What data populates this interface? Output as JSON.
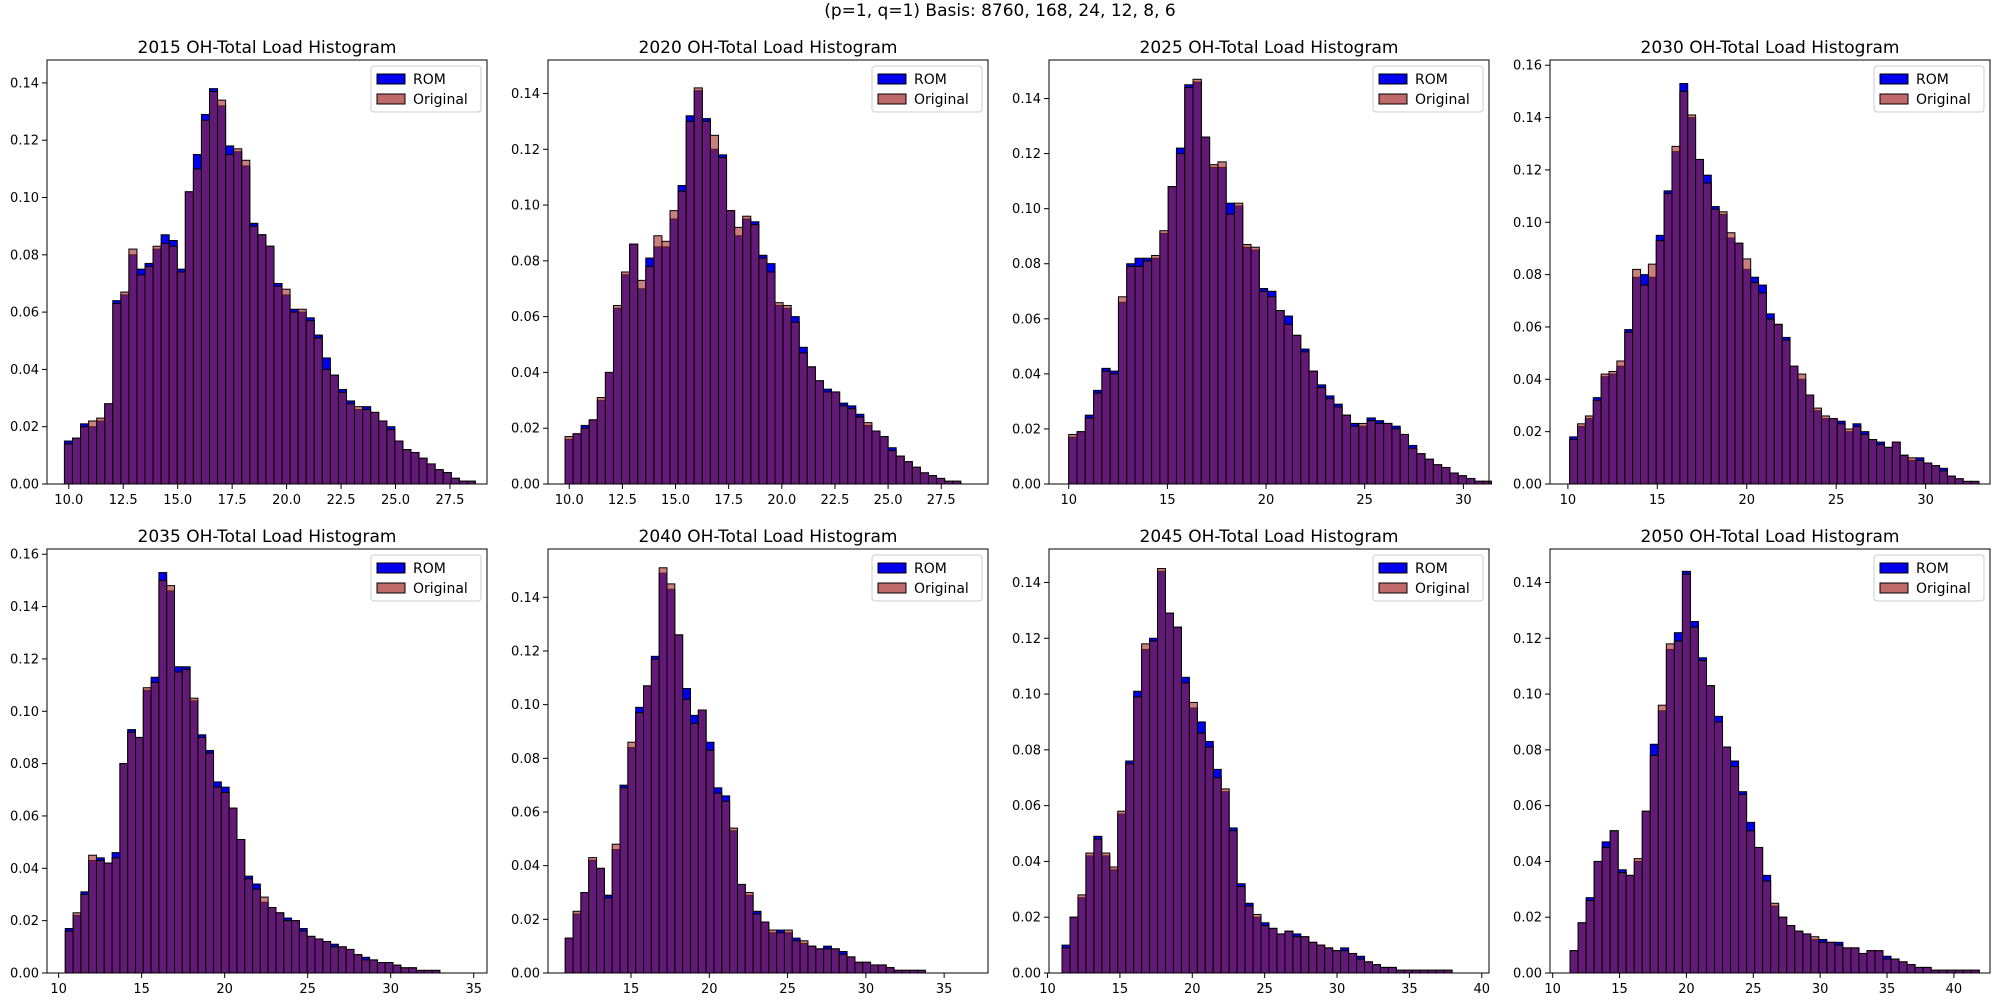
{
  "figure": {
    "suptitle": "(p=1, q=1) Basis: 8760, 168, 24, 12, 8, 6"
  },
  "colors": {
    "rom": "#0000ee",
    "original": "#a52a2a",
    "overlap": "#6b003f",
    "edge": "#000000"
  },
  "chart_data": [
    {
      "type": "bar",
      "title": "2015 OH-Total Load Histogram",
      "xlim": [
        9.0,
        29.2
      ],
      "ylim": [
        0,
        0.148
      ],
      "xticks": [
        10.0,
        12.5,
        15.0,
        17.5,
        20.0,
        22.5,
        25.0,
        27.5
      ],
      "xtick_labels": [
        "10.0",
        "12.5",
        "15.0",
        "17.5",
        "20.0",
        "22.5",
        "25.0",
        "27.5"
      ],
      "yticks": [
        0,
        0.02,
        0.04,
        0.06,
        0.08,
        0.1,
        0.12,
        0.14
      ],
      "ytick_labels": [
        "0.00",
        "0.02",
        "0.04",
        "0.06",
        "0.08",
        "0.10",
        "0.12",
        "0.14"
      ],
      "legend": [
        "ROM",
        "Original"
      ],
      "legend_position": "top-right",
      "bin_start": 9.8,
      "bin_width": 0.37,
      "rom": [
        0.015,
        0.016,
        0.021,
        0.02,
        0.022,
        0.028,
        0.064,
        0.066,
        0.08,
        0.075,
        0.077,
        0.082,
        0.087,
        0.085,
        0.075,
        0.102,
        0.115,
        0.129,
        0.138,
        0.132,
        0.118,
        0.116,
        0.111,
        0.091,
        0.087,
        0.083,
        0.07,
        0.066,
        0.061,
        0.06,
        0.058,
        0.052,
        0.044,
        0.038,
        0.033,
        0.029,
        0.026,
        0.027,
        0.025,
        0.022,
        0.02,
        0.015,
        0.012,
        0.011,
        0.009,
        0.007,
        0.005,
        0.004,
        0.002,
        0.001,
        0.001
      ],
      "original": [
        0.014,
        0.016,
        0.02,
        0.022,
        0.023,
        0.028,
        0.063,
        0.067,
        0.082,
        0.073,
        0.076,
        0.083,
        0.084,
        0.083,
        0.074,
        0.102,
        0.11,
        0.127,
        0.137,
        0.134,
        0.115,
        0.117,
        0.113,
        0.09,
        0.087,
        0.083,
        0.069,
        0.068,
        0.06,
        0.061,
        0.057,
        0.051,
        0.04,
        0.038,
        0.032,
        0.028,
        0.027,
        0.026,
        0.025,
        0.022,
        0.019,
        0.015,
        0.012,
        0.011,
        0.009,
        0.007,
        0.005,
        0.004,
        0.002,
        0.001,
        0.001
      ]
    },
    {
      "type": "bar",
      "title": "2020 OH-Total Load Histogram",
      "xlim": [
        9.0,
        29.7
      ],
      "ylim": [
        0,
        0.152
      ],
      "xticks": [
        10.0,
        12.5,
        15.0,
        17.5,
        20.0,
        22.5,
        25.0,
        27.5
      ],
      "xtick_labels": [
        "10.0",
        "12.5",
        "15.0",
        "17.5",
        "20.0",
        "22.5",
        "25.0",
        "27.5"
      ],
      "yticks": [
        0,
        0.02,
        0.04,
        0.06,
        0.08,
        0.1,
        0.12,
        0.14
      ],
      "ytick_labels": [
        "0.00",
        "0.02",
        "0.04",
        "0.06",
        "0.08",
        "0.10",
        "0.12",
        "0.14"
      ],
      "legend": [
        "ROM",
        "Original"
      ],
      "legend_position": "top-right",
      "bin_start": 9.8,
      "bin_width": 0.38,
      "rom": [
        0.016,
        0.018,
        0.021,
        0.023,
        0.03,
        0.04,
        0.063,
        0.075,
        0.086,
        0.07,
        0.081,
        0.085,
        0.085,
        0.095,
        0.107,
        0.132,
        0.141,
        0.131,
        0.12,
        0.118,
        0.098,
        0.089,
        0.095,
        0.094,
        0.082,
        0.079,
        0.064,
        0.063,
        0.06,
        0.049,
        0.042,
        0.037,
        0.034,
        0.033,
        0.029,
        0.028,
        0.025,
        0.021,
        0.019,
        0.017,
        0.013,
        0.01,
        0.008,
        0.006,
        0.004,
        0.003,
        0.002,
        0.001,
        0.001
      ],
      "original": [
        0.017,
        0.018,
        0.02,
        0.023,
        0.031,
        0.04,
        0.064,
        0.076,
        0.086,
        0.073,
        0.078,
        0.089,
        0.087,
        0.098,
        0.105,
        0.13,
        0.142,
        0.13,
        0.125,
        0.117,
        0.098,
        0.092,
        0.096,
        0.093,
        0.081,
        0.076,
        0.065,
        0.064,
        0.058,
        0.047,
        0.042,
        0.037,
        0.033,
        0.033,
        0.028,
        0.027,
        0.024,
        0.022,
        0.019,
        0.017,
        0.012,
        0.01,
        0.008,
        0.006,
        0.004,
        0.003,
        0.002,
        0.001,
        0.001
      ]
    },
    {
      "type": "bar",
      "title": "2025 OH-Total Load Histogram",
      "xlim": [
        9.0,
        31.3
      ],
      "ylim": [
        0,
        0.154
      ],
      "xticks": [
        10,
        15,
        20,
        25,
        30
      ],
      "xtick_labels": [
        "10",
        "15",
        "20",
        "25",
        "30"
      ],
      "yticks": [
        0,
        0.02,
        0.04,
        0.06,
        0.08,
        0.1,
        0.12,
        0.14
      ],
      "ytick_labels": [
        "0.00",
        "0.02",
        "0.04",
        "0.06",
        "0.08",
        "0.10",
        "0.12",
        "0.14"
      ],
      "legend": [
        "ROM",
        "Original"
      ],
      "legend_position": "top-right",
      "bin_start": 10.0,
      "bin_width": 0.42,
      "rom": [
        0.017,
        0.019,
        0.025,
        0.034,
        0.042,
        0.041,
        0.066,
        0.08,
        0.082,
        0.082,
        0.082,
        0.091,
        0.108,
        0.122,
        0.145,
        0.146,
        0.126,
        0.115,
        0.115,
        0.102,
        0.101,
        0.086,
        0.085,
        0.071,
        0.07,
        0.063,
        0.061,
        0.054,
        0.049,
        0.041,
        0.036,
        0.032,
        0.029,
        0.025,
        0.022,
        0.021,
        0.024,
        0.023,
        0.022,
        0.021,
        0.018,
        0.014,
        0.011,
        0.009,
        0.007,
        0.006,
        0.004,
        0.003,
        0.002,
        0.001,
        0.001
      ],
      "original": [
        0.018,
        0.019,
        0.024,
        0.033,
        0.041,
        0.04,
        0.068,
        0.079,
        0.079,
        0.081,
        0.083,
        0.092,
        0.108,
        0.12,
        0.144,
        0.147,
        0.126,
        0.116,
        0.117,
        0.098,
        0.102,
        0.087,
        0.086,
        0.07,
        0.068,
        0.063,
        0.058,
        0.054,
        0.048,
        0.041,
        0.035,
        0.031,
        0.028,
        0.025,
        0.021,
        0.022,
        0.023,
        0.022,
        0.022,
        0.02,
        0.018,
        0.013,
        0.011,
        0.009,
        0.007,
        0.006,
        0.004,
        0.003,
        0.002,
        0.001,
        0.001
      ]
    },
    {
      "type": "bar",
      "title": "2030 OH-Total Load Histogram",
      "xlim": [
        9.0,
        33.6
      ],
      "ylim": [
        0,
        0.162
      ],
      "xticks": [
        10,
        15,
        20,
        25,
        30
      ],
      "xtick_labels": [
        "10",
        "15",
        "20",
        "25",
        "30"
      ],
      "yticks": [
        0,
        0.02,
        0.04,
        0.06,
        0.08,
        0.1,
        0.12,
        0.14,
        0.16
      ],
      "ytick_labels": [
        "0.00",
        "0.02",
        "0.04",
        "0.06",
        "0.08",
        "0.10",
        "0.12",
        "0.14",
        "0.16"
      ],
      "legend": [
        "ROM",
        "Original"
      ],
      "legend_position": "top-right",
      "bin_start": 10.1,
      "bin_width": 0.44,
      "rom": [
        0.018,
        0.022,
        0.025,
        0.033,
        0.041,
        0.042,
        0.045,
        0.059,
        0.079,
        0.08,
        0.079,
        0.095,
        0.112,
        0.127,
        0.153,
        0.14,
        0.124,
        0.118,
        0.106,
        0.103,
        0.094,
        0.092,
        0.082,
        0.079,
        0.076,
        0.065,
        0.061,
        0.056,
        0.045,
        0.04,
        0.034,
        0.028,
        0.025,
        0.025,
        0.024,
        0.02,
        0.023,
        0.02,
        0.017,
        0.016,
        0.014,
        0.016,
        0.011,
        0.009,
        0.01,
        0.008,
        0.007,
        0.006,
        0.003,
        0.002,
        0.001,
        0.001
      ],
      "original": [
        0.017,
        0.023,
        0.026,
        0.032,
        0.042,
        0.043,
        0.047,
        0.058,
        0.082,
        0.076,
        0.084,
        0.093,
        0.111,
        0.129,
        0.15,
        0.141,
        0.124,
        0.115,
        0.105,
        0.104,
        0.096,
        0.092,
        0.086,
        0.077,
        0.073,
        0.063,
        0.061,
        0.055,
        0.045,
        0.042,
        0.034,
        0.029,
        0.026,
        0.025,
        0.023,
        0.021,
        0.022,
        0.019,
        0.017,
        0.015,
        0.014,
        0.016,
        0.011,
        0.01,
        0.009,
        0.008,
        0.007,
        0.005,
        0.003,
        0.002,
        0.001,
        0.001
      ]
    },
    {
      "type": "bar",
      "title": "2035 OH-Total Load Histogram",
      "xlim": [
        9.3,
        35.8
      ],
      "ylim": [
        0,
        0.162
      ],
      "xticks": [
        10,
        15,
        20,
        25,
        30,
        35
      ],
      "xtick_labels": [
        "10",
        "15",
        "20",
        "25",
        "30",
        "35"
      ],
      "yticks": [
        0,
        0.02,
        0.04,
        0.06,
        0.08,
        0.1,
        0.12,
        0.14,
        0.16
      ],
      "ytick_labels": [
        "0.00",
        "0.02",
        "0.04",
        "0.06",
        "0.08",
        "0.10",
        "0.12",
        "0.14",
        "0.16"
      ],
      "legend": [
        "ROM",
        "Original"
      ],
      "legend_position": "top-right",
      "bin_start": 10.4,
      "bin_width": 0.47,
      "rom": [
        0.017,
        0.022,
        0.031,
        0.043,
        0.044,
        0.042,
        0.046,
        0.08,
        0.093,
        0.09,
        0.108,
        0.113,
        0.153,
        0.146,
        0.117,
        0.117,
        0.104,
        0.091,
        0.085,
        0.073,
        0.071,
        0.063,
        0.051,
        0.037,
        0.034,
        0.027,
        0.025,
        0.023,
        0.021,
        0.02,
        0.017,
        0.014,
        0.013,
        0.012,
        0.011,
        0.01,
        0.009,
        0.007,
        0.006,
        0.005,
        0.004,
        0.004,
        0.003,
        0.002,
        0.002,
        0.001,
        0.001,
        0.001
      ],
      "original": [
        0.016,
        0.023,
        0.03,
        0.045,
        0.043,
        0.042,
        0.044,
        0.08,
        0.092,
        0.09,
        0.109,
        0.111,
        0.15,
        0.148,
        0.115,
        0.116,
        0.105,
        0.09,
        0.084,
        0.071,
        0.069,
        0.063,
        0.051,
        0.036,
        0.032,
        0.029,
        0.025,
        0.023,
        0.02,
        0.02,
        0.016,
        0.014,
        0.013,
        0.012,
        0.01,
        0.01,
        0.009,
        0.007,
        0.005,
        0.005,
        0.004,
        0.004,
        0.003,
        0.002,
        0.002,
        0.001,
        0.001,
        0.001
      ]
    },
    {
      "type": "bar",
      "title": "2040 OH-Total Load Histogram",
      "xlim": [
        9.7,
        37.8
      ],
      "ylim": [
        0,
        0.158
      ],
      "xticks": [
        15,
        20,
        25,
        30,
        35
      ],
      "xtick_labels": [
        "15",
        "20",
        "25",
        "30",
        "35"
      ],
      "yticks": [
        0,
        0.02,
        0.04,
        0.06,
        0.08,
        0.1,
        0.12,
        0.14
      ],
      "ytick_labels": [
        "0.00",
        "0.02",
        "0.04",
        "0.06",
        "0.08",
        "0.10",
        "0.12",
        "0.14"
      ],
      "legend": [
        "ROM",
        "Original"
      ],
      "legend_position": "top-right",
      "bin_start": 10.8,
      "bin_width": 0.5,
      "rom": [
        0.013,
        0.022,
        0.03,
        0.042,
        0.039,
        0.029,
        0.046,
        0.07,
        0.084,
        0.099,
        0.107,
        0.118,
        0.149,
        0.143,
        0.126,
        0.106,
        0.096,
        0.098,
        0.086,
        0.069,
        0.066,
        0.053,
        0.033,
        0.029,
        0.023,
        0.019,
        0.015,
        0.016,
        0.015,
        0.013,
        0.011,
        0.01,
        0.009,
        0.01,
        0.009,
        0.008,
        0.006,
        0.004,
        0.004,
        0.003,
        0.003,
        0.002,
        0.001,
        0.001,
        0.001,
        0.001
      ],
      "original": [
        0.013,
        0.023,
        0.03,
        0.043,
        0.039,
        0.028,
        0.048,
        0.069,
        0.086,
        0.097,
        0.107,
        0.117,
        0.151,
        0.145,
        0.126,
        0.102,
        0.093,
        0.098,
        0.083,
        0.067,
        0.064,
        0.054,
        0.033,
        0.03,
        0.022,
        0.019,
        0.016,
        0.015,
        0.016,
        0.012,
        0.012,
        0.01,
        0.009,
        0.009,
        0.009,
        0.007,
        0.006,
        0.004,
        0.004,
        0.003,
        0.003,
        0.002,
        0.001,
        0.001,
        0.001,
        0.001
      ]
    },
    {
      "type": "bar",
      "title": "2045 OH-Total Load Histogram",
      "xlim": [
        10.1,
        40.5
      ],
      "ylim": [
        0,
        0.152
      ],
      "xticks": [
        10,
        15,
        20,
        25,
        30,
        35,
        40
      ],
      "xtick_labels": [
        "10",
        "15",
        "20",
        "25",
        "30",
        "35",
        "40"
      ],
      "yticks": [
        0,
        0.02,
        0.04,
        0.06,
        0.08,
        0.1,
        0.12,
        0.14
      ],
      "ytick_labels": [
        "0.00",
        "0.02",
        "0.04",
        "0.06",
        "0.08",
        "0.10",
        "0.12",
        "0.14"
      ],
      "legend": [
        "ROM",
        "Original"
      ],
      "legend_position": "top-right",
      "bin_start": 11.0,
      "bin_width": 0.55,
      "rom": [
        0.01,
        0.02,
        0.027,
        0.042,
        0.049,
        0.042,
        0.037,
        0.057,
        0.076,
        0.101,
        0.116,
        0.12,
        0.144,
        0.129,
        0.124,
        0.106,
        0.095,
        0.09,
        0.083,
        0.073,
        0.065,
        0.052,
        0.032,
        0.025,
        0.02,
        0.018,
        0.016,
        0.014,
        0.015,
        0.014,
        0.013,
        0.011,
        0.01,
        0.009,
        0.008,
        0.009,
        0.007,
        0.006,
        0.004,
        0.003,
        0.002,
        0.002,
        0.001,
        0.001,
        0.001,
        0.001,
        0.001,
        0.001,
        0.001
      ],
      "original": [
        0.009,
        0.02,
        0.028,
        0.043,
        0.048,
        0.043,
        0.038,
        0.058,
        0.075,
        0.099,
        0.118,
        0.119,
        0.145,
        0.129,
        0.124,
        0.104,
        0.097,
        0.086,
        0.081,
        0.07,
        0.066,
        0.051,
        0.031,
        0.024,
        0.021,
        0.017,
        0.016,
        0.014,
        0.015,
        0.013,
        0.013,
        0.011,
        0.01,
        0.009,
        0.008,
        0.008,
        0.007,
        0.005,
        0.004,
        0.003,
        0.002,
        0.002,
        0.001,
        0.001,
        0.001,
        0.001,
        0.001,
        0.001,
        0.001
      ]
    },
    {
      "type": "bar",
      "title": "2050 OH-Total Load Histogram",
      "xlim": [
        9.8,
        42.7
      ],
      "ylim": [
        0,
        0.152
      ],
      "xticks": [
        10,
        15,
        20,
        25,
        30,
        35,
        40
      ],
      "xtick_labels": [
        "10",
        "15",
        "20",
        "25",
        "30",
        "35",
        "40"
      ],
      "yticks": [
        0,
        0.02,
        0.04,
        0.06,
        0.08,
        0.1,
        0.12,
        0.14
      ],
      "ytick_labels": [
        "0.00",
        "0.02",
        "0.04",
        "0.06",
        "0.08",
        "0.10",
        "0.12",
        "0.14"
      ],
      "legend": [
        "ROM",
        "Original"
      ],
      "legend_position": "top-right",
      "bin_start": 11.3,
      "bin_width": 0.6,
      "rom": [
        0.008,
        0.018,
        0.027,
        0.04,
        0.047,
        0.051,
        0.037,
        0.035,
        0.04,
        0.058,
        0.082,
        0.094,
        0.116,
        0.122,
        0.144,
        0.126,
        0.113,
        0.103,
        0.092,
        0.081,
        0.076,
        0.065,
        0.054,
        0.045,
        0.035,
        0.024,
        0.02,
        0.017,
        0.015,
        0.014,
        0.012,
        0.012,
        0.011,
        0.011,
        0.009,
        0.009,
        0.007,
        0.008,
        0.008,
        0.006,
        0.005,
        0.004,
        0.003,
        0.002,
        0.002,
        0.001,
        0.001,
        0.001,
        0.001,
        0.001,
        0.001
      ],
      "original": [
        0.008,
        0.018,
        0.026,
        0.04,
        0.045,
        0.051,
        0.036,
        0.035,
        0.041,
        0.058,
        0.078,
        0.096,
        0.118,
        0.119,
        0.143,
        0.124,
        0.112,
        0.103,
        0.09,
        0.081,
        0.074,
        0.064,
        0.051,
        0.045,
        0.033,
        0.025,
        0.02,
        0.017,
        0.015,
        0.014,
        0.013,
        0.011,
        0.011,
        0.01,
        0.009,
        0.009,
        0.007,
        0.008,
        0.008,
        0.005,
        0.005,
        0.004,
        0.003,
        0.002,
        0.002,
        0.001,
        0.001,
        0.001,
        0.001,
        0.001,
        0.001
      ]
    }
  ]
}
